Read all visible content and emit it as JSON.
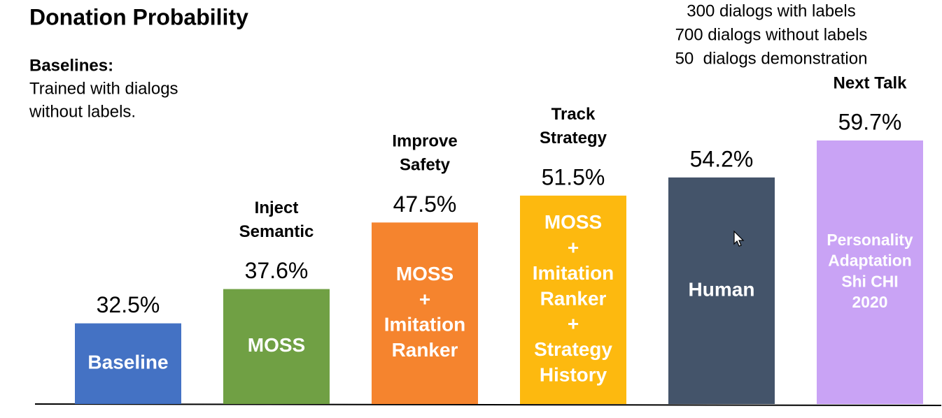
{
  "chart_data": {
    "type": "bar",
    "title": "Donation Probability",
    "baseline_note": {
      "heading": "Baselines:",
      "lines": [
        "Trained with dialogs",
        "without labels."
      ]
    },
    "data_note": [
      "300 dialogs with labels",
      "700 dialogs without labels",
      "50  dialogs demonstration"
    ],
    "categories": [
      [
        "Baseline"
      ],
      [
        "MOSS"
      ],
      [
        "MOSS",
        "+",
        "Imitation",
        "Ranker"
      ],
      [
        "MOSS",
        "+",
        "Imitation",
        "Ranker",
        "+",
        "Strategy",
        "History"
      ],
      [
        "Human"
      ],
      [
        "Personality",
        "Adaptation",
        "Shi CHI",
        "2020"
      ]
    ],
    "bar_headers": [
      null,
      [
        "Inject",
        "Semantic"
      ],
      [
        "Improve",
        "Safety"
      ],
      [
        "Track",
        "Strategy"
      ],
      null,
      [
        "Next Talk"
      ]
    ],
    "values": [
      32.5,
      37.6,
      47.5,
      51.5,
      54.2,
      59.7
    ],
    "value_labels": [
      "32.5%",
      "37.6%",
      "47.5%",
      "51.5%",
      "54.2%",
      "59.7%"
    ],
    "colors": [
      "#4472c4",
      "#70a044",
      "#f5842e",
      "#fdb90f",
      "#44546a",
      "#c9a3f5"
    ],
    "ylim": [
      20.5,
      65
    ]
  }
}
